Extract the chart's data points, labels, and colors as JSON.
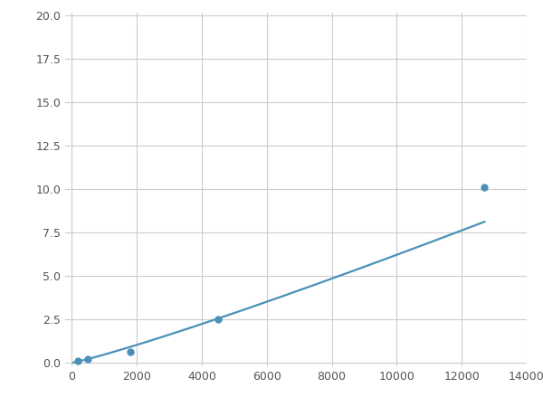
{
  "x": [
    200,
    500,
    1800,
    4500,
    12700
  ],
  "y": [
    0.1,
    0.2,
    0.65,
    2.5,
    10.1
  ],
  "line_color": "#4a90b8",
  "marker_color": "#4a90b8",
  "marker_size": 6,
  "marker_style": "o",
  "xlim": [
    -200,
    14000
  ],
  "ylim": [
    -0.2,
    20.2
  ],
  "xticks": [
    0,
    2000,
    4000,
    6000,
    8000,
    10000,
    12000,
    14000
  ],
  "yticks": [
    0.0,
    2.5,
    5.0,
    7.5,
    10.0,
    12.5,
    15.0,
    17.5,
    20.0
  ],
  "grid_color": "#cccccc",
  "background_color": "#ffffff",
  "linewidth": 1.6,
  "power_a": 0.000185,
  "power_b": 1.38
}
